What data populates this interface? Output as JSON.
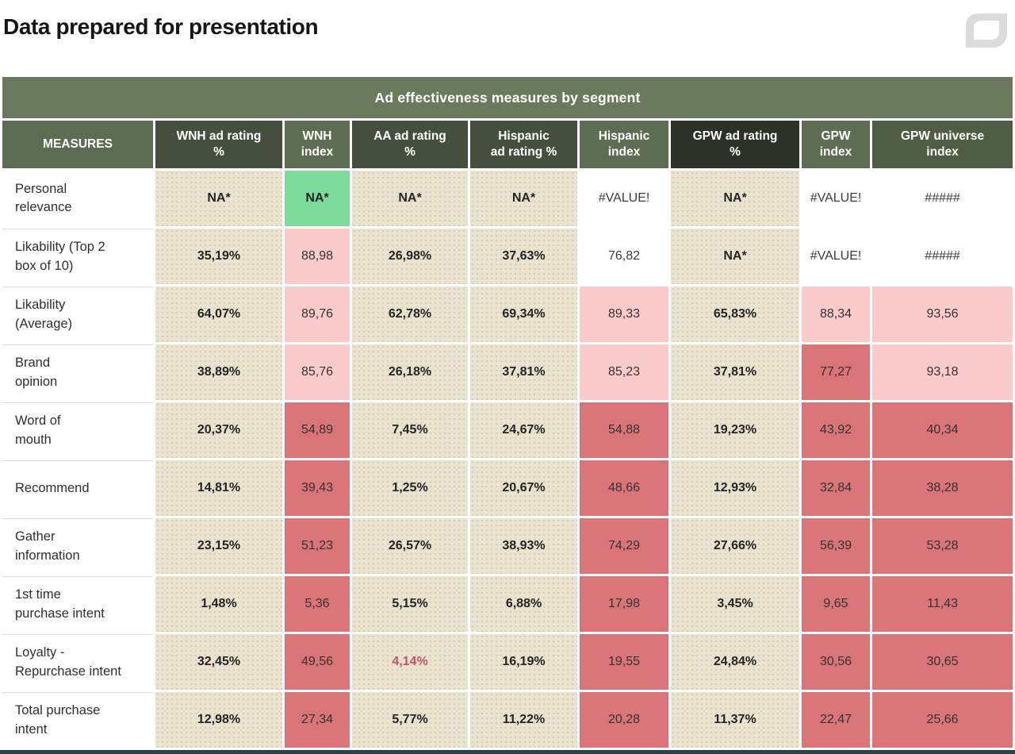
{
  "header": {
    "title": "Data prepared for presentation",
    "logo_icon": "leaf-outline-icon"
  },
  "colors": {
    "banner_green": "#6b7a5e",
    "header_mid": "#5d6d53",
    "header_dark": "#454f3d",
    "header_darkest": "#2d3228",
    "header_middark": "#4f5d45",
    "cell_beige": "#e9e3d0",
    "cell_pink": "#fbcbcc",
    "cell_red": "#d97478",
    "cell_green": "#7cdb98",
    "alert_red": "#c1565c",
    "bottom_bar": "#24424e",
    "logo_gray": "#dbdbde"
  },
  "table": {
    "banner": "Ad effectiveness measures by segment",
    "columns": [
      {
        "label": "MEASURES",
        "tone": "mid"
      },
      {
        "label": "WNH ad rating\n%",
        "tone": "dark"
      },
      {
        "label": "WNH\nindex",
        "tone": "mid"
      },
      {
        "label": "AA ad rating\n%",
        "tone": "dark"
      },
      {
        "label": "Hispanic\nad rating %",
        "tone": "dark"
      },
      {
        "label": "Hispanic\nindex",
        "tone": "mid"
      },
      {
        "label": "GPW ad rating\n%",
        "tone": "darkest"
      },
      {
        "label": "GPW\nindex",
        "tone": "mid"
      },
      {
        "label": "GPW universe\nindex",
        "tone": "middark"
      }
    ],
    "rows": [
      {
        "measure": "Personal\nrelevance",
        "cells": [
          {
            "v": "NA*",
            "bg": "beige",
            "strong": true
          },
          {
            "v": "NA*",
            "bg": "green",
            "strong": true
          },
          {
            "v": "NA*",
            "bg": "beige",
            "strong": true
          },
          {
            "v": "NA*",
            "bg": "beige",
            "strong": true
          },
          {
            "v": "#VALUE!",
            "bg": "white"
          },
          {
            "v": "NA*",
            "bg": "beige",
            "strong": true
          },
          {
            "v": "#VALUE!",
            "bg": "white"
          },
          {
            "v": "#####",
            "bg": "white"
          }
        ]
      },
      {
        "measure": "Likability (Top 2\nbox of 10)",
        "cells": [
          {
            "v": "35,19%",
            "bg": "beige",
            "strong": true
          },
          {
            "v": "88,98",
            "bg": "pink"
          },
          {
            "v": "26,98%",
            "bg": "beige",
            "strong": true
          },
          {
            "v": "37,63%",
            "bg": "beige",
            "strong": true
          },
          {
            "v": "76,82",
            "bg": "white"
          },
          {
            "v": "NA*",
            "bg": "beige",
            "strong": true
          },
          {
            "v": "#VALUE!",
            "bg": "white"
          },
          {
            "v": "#####",
            "bg": "white"
          }
        ]
      },
      {
        "measure": "Likability\n(Average)",
        "cells": [
          {
            "v": "64,07%",
            "bg": "beige",
            "strong": true
          },
          {
            "v": "89,76",
            "bg": "pink"
          },
          {
            "v": "62,78%",
            "bg": "beige",
            "strong": true
          },
          {
            "v": "69,34%",
            "bg": "beige",
            "strong": true
          },
          {
            "v": "89,33",
            "bg": "pink"
          },
          {
            "v": "65,83%",
            "bg": "beige",
            "strong": true
          },
          {
            "v": "88,34",
            "bg": "pink"
          },
          {
            "v": "93,56",
            "bg": "pink"
          }
        ]
      },
      {
        "measure": "Brand\nopinion",
        "cells": [
          {
            "v": "38,89%",
            "bg": "beige",
            "strong": true
          },
          {
            "v": "85,76",
            "bg": "pink"
          },
          {
            "v": "26,18%",
            "bg": "beige",
            "strong": true
          },
          {
            "v": "37,81%",
            "bg": "beige",
            "strong": true
          },
          {
            "v": "85,23",
            "bg": "pink"
          },
          {
            "v": "37,81%",
            "bg": "beige",
            "strong": true
          },
          {
            "v": "77,27",
            "bg": "red"
          },
          {
            "v": "93,18",
            "bg": "pink"
          }
        ]
      },
      {
        "measure": "Word of\nmouth",
        "cells": [
          {
            "v": "20,37%",
            "bg": "beige",
            "strong": true
          },
          {
            "v": "54,89",
            "bg": "red"
          },
          {
            "v": "7,45%",
            "bg": "beige",
            "strong": true
          },
          {
            "v": "24,67%",
            "bg": "beige",
            "strong": true
          },
          {
            "v": "54,88",
            "bg": "red"
          },
          {
            "v": "19,23%",
            "bg": "beige",
            "strong": true
          },
          {
            "v": "43,92",
            "bg": "red"
          },
          {
            "v": "40,34",
            "bg": "red"
          }
        ]
      },
      {
        "measure": "Recommend",
        "cells": [
          {
            "v": "14,81%",
            "bg": "beige",
            "strong": true
          },
          {
            "v": "39,43",
            "bg": "red"
          },
          {
            "v": "1,25%",
            "bg": "beige",
            "strong": true
          },
          {
            "v": "20,67%",
            "bg": "beige",
            "strong": true
          },
          {
            "v": "48,66",
            "bg": "red"
          },
          {
            "v": "12,93%",
            "bg": "beige",
            "strong": true
          },
          {
            "v": "32,84",
            "bg": "red"
          },
          {
            "v": "38,28",
            "bg": "red"
          }
        ]
      },
      {
        "measure": "Gather\ninformation",
        "cells": [
          {
            "v": "23,15%",
            "bg": "beige",
            "strong": true
          },
          {
            "v": "51,23",
            "bg": "red"
          },
          {
            "v": "26,57%",
            "bg": "beige",
            "strong": true
          },
          {
            "v": "38,93%",
            "bg": "beige",
            "strong": true
          },
          {
            "v": "74,29",
            "bg": "red"
          },
          {
            "v": "27,66%",
            "bg": "beige",
            "strong": true
          },
          {
            "v": "56,39",
            "bg": "red"
          },
          {
            "v": "53,28",
            "bg": "red"
          }
        ]
      },
      {
        "measure": "1st time\npurchase intent",
        "cells": [
          {
            "v": "1,48%",
            "bg": "beige",
            "strong": true
          },
          {
            "v": "5,36",
            "bg": "red"
          },
          {
            "v": "5,15%",
            "bg": "beige",
            "strong": true
          },
          {
            "v": "6,88%",
            "bg": "beige",
            "strong": true
          },
          {
            "v": "17,98",
            "bg": "red"
          },
          {
            "v": "3,45%",
            "bg": "beige",
            "strong": true
          },
          {
            "v": "9,65",
            "bg": "red"
          },
          {
            "v": "11,43",
            "bg": "red"
          }
        ]
      },
      {
        "measure": "Loyalty -\nRepurchase intent",
        "cells": [
          {
            "v": "32,45%",
            "bg": "beige",
            "strong": true
          },
          {
            "v": "49,56",
            "bg": "red"
          },
          {
            "v": "4,14%",
            "bg": "beige",
            "strong": true,
            "alert": true
          },
          {
            "v": "16,19%",
            "bg": "beige",
            "strong": true
          },
          {
            "v": "19,55",
            "bg": "red"
          },
          {
            "v": "24,84%",
            "bg": "beige",
            "strong": true
          },
          {
            "v": "30,56",
            "bg": "red"
          },
          {
            "v": "30,65",
            "bg": "red"
          }
        ]
      },
      {
        "measure": "Total purchase\nintent",
        "cells": [
          {
            "v": "12,98%",
            "bg": "beige",
            "strong": true
          },
          {
            "v": "27,34",
            "bg": "red"
          },
          {
            "v": "5,77%",
            "bg": "beige",
            "strong": true
          },
          {
            "v": "11,22%",
            "bg": "beige",
            "strong": true
          },
          {
            "v": "20,28",
            "bg": "red"
          },
          {
            "v": "11,37%",
            "bg": "beige",
            "strong": true
          },
          {
            "v": "22,47",
            "bg": "red"
          },
          {
            "v": "25,66",
            "bg": "red"
          }
        ]
      }
    ]
  }
}
